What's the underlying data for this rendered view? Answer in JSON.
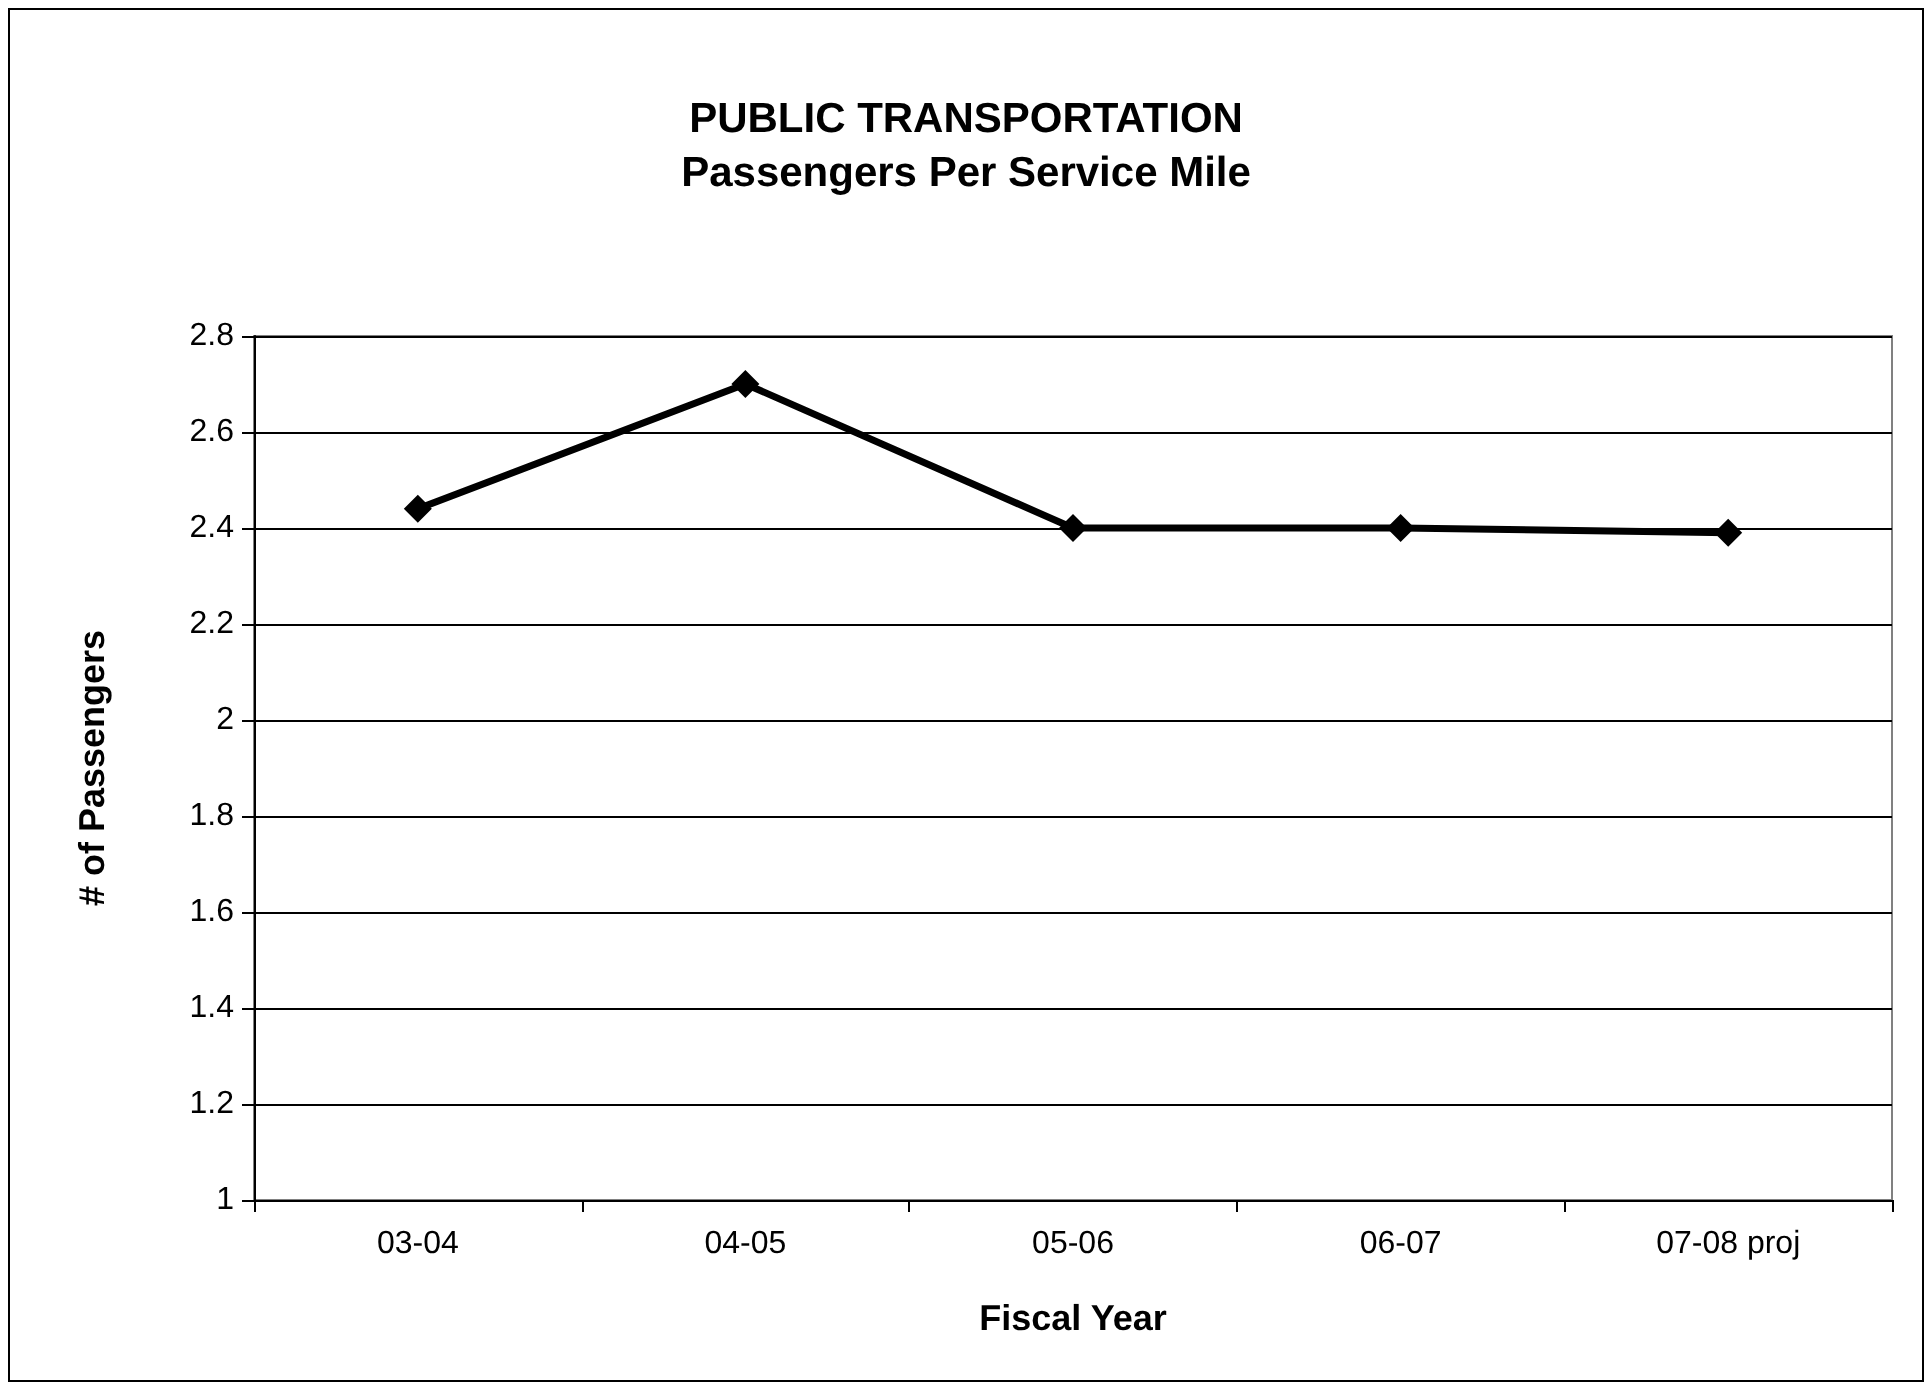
{
  "chart_data": {
    "type": "line",
    "title": "PUBLIC TRANSPORTATION",
    "subtitle": "Passengers Per Service Mile",
    "xlabel": "Fiscal Year",
    "ylabel": "# of Passengers",
    "categories": [
      "03-04",
      "04-05",
      "05-06",
      "06-07",
      "07-08 proj"
    ],
    "series": [
      {
        "color": "#000000",
        "values": [
          2.44,
          2.7,
          2.4,
          2.4,
          2.39
        ]
      }
    ],
    "ylim": [
      1,
      2.8
    ],
    "yticks": [
      1,
      1.2,
      1.4,
      1.6,
      1.8,
      2,
      2.2,
      2.4,
      2.6,
      2.8
    ],
    "grid": "y",
    "marker": "diamond",
    "line_style": "solid"
  }
}
